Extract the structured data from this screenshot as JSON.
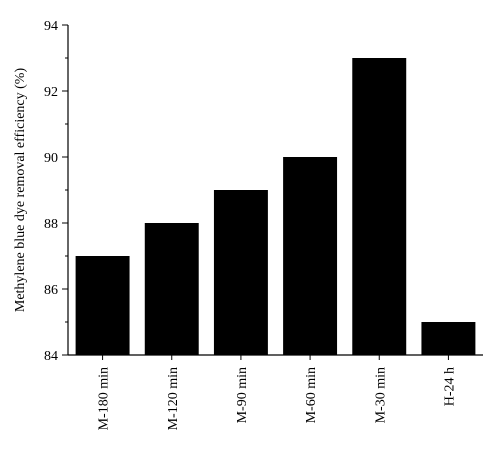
{
  "chart_data": {
    "type": "bar",
    "title": "",
    "xlabel": "",
    "ylabel": "Methylene blue dye removal efficiency (%)",
    "categories": [
      "M-180 min",
      "M-120 min",
      "M-90 min",
      "M-60 min",
      "M-30 min",
      "H-24 h"
    ],
    "values": [
      87,
      88,
      89,
      90,
      93,
      85
    ],
    "ylim": [
      84,
      94
    ],
    "yticks": [
      84,
      86,
      88,
      90,
      92,
      94
    ],
    "bar_color": "#000000",
    "grid": false,
    "legend": "none"
  }
}
